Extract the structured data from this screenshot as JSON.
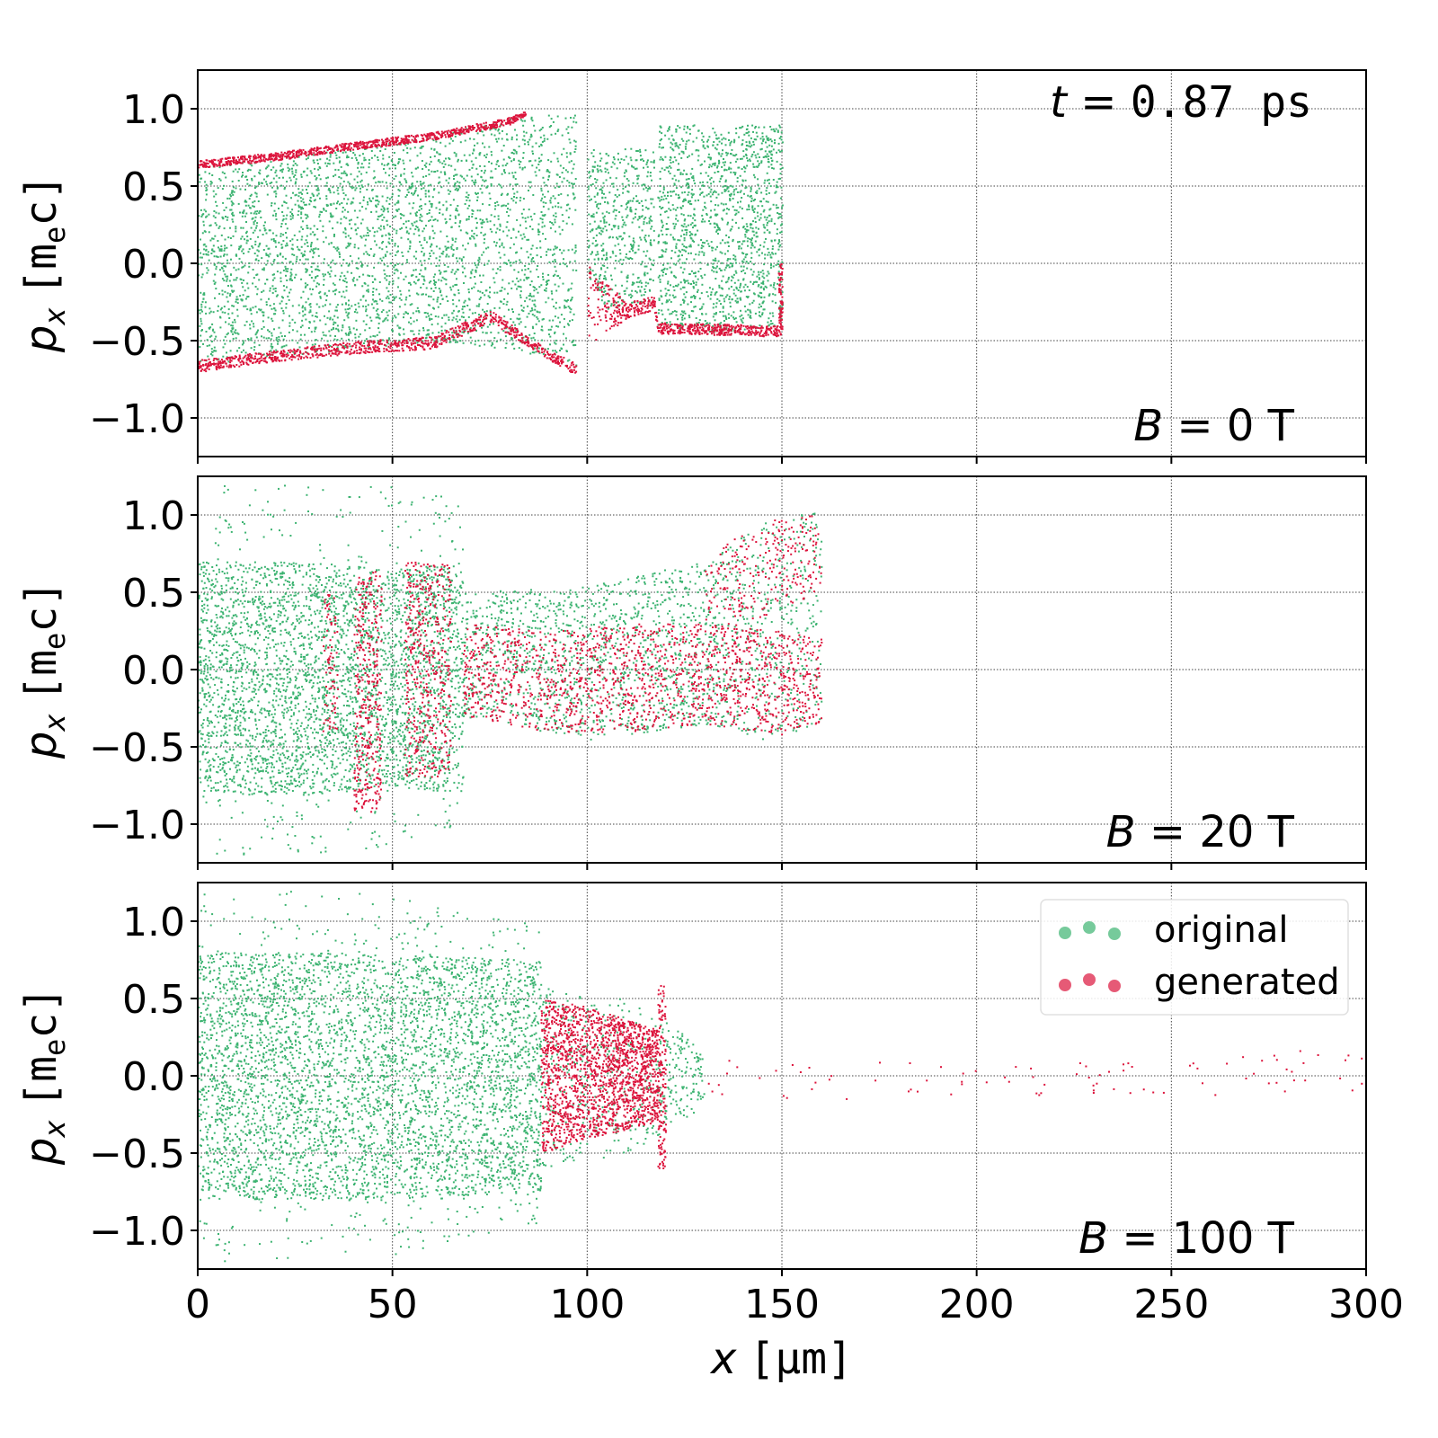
{
  "chart_data": {
    "type": "scatter",
    "colors": {
      "original": "#3cb371",
      "generated": "#dc143c",
      "grid": "#444444"
    },
    "grid": true,
    "legend": {
      "placement": "top-right",
      "panel": 2,
      "entries": [
        {
          "label": "original",
          "color": "#3cb371"
        },
        {
          "label": "generated",
          "color": "#dc143c"
        }
      ]
    },
    "xlabel": {
      "var": "x",
      "unit": "[μm]"
    },
    "ylabel": {
      "var": "p",
      "sub": "x",
      "unit_open": "[m",
      "unit_sub": "e",
      "unit_close": "c]"
    },
    "xlim": [
      0,
      300
    ],
    "ylim": [
      -1.25,
      1.25
    ],
    "xticks": [
      "0",
      "50",
      "100",
      "150",
      "200",
      "250",
      "300"
    ],
    "xtick_values": [
      0,
      50,
      100,
      150,
      200,
      250,
      300
    ],
    "yticks": [
      "−1.0",
      "−0.5",
      "0.0",
      "0.5",
      "1.0"
    ],
    "ytick_values": [
      -1.0,
      -0.5,
      0.0,
      0.5,
      1.0
    ],
    "time_annotation": {
      "var": "t",
      "eq": " = ",
      "value": "0.87 ps"
    },
    "panels": [
      {
        "annotation": {
          "var": "B",
          "eq": " = ",
          "value": "0 T"
        },
        "original": [
          {
            "x": [
              0,
              20,
              40,
              60,
              80,
              97
            ],
            "lo": [
              -0.65,
              -0.6,
              -0.55,
              -0.5,
              -0.55,
              -0.66
            ],
            "hi": [
              0.63,
              0.68,
              0.75,
              0.82,
              0.95,
              0.97
            ],
            "n": 3200
          },
          {
            "x": [
              100,
              105,
              110,
              117
            ],
            "lo": [
              -0.1,
              -0.3,
              -0.25,
              -0.28
            ],
            "hi": [
              0.75,
              0.72,
              0.75,
              0.78
            ],
            "n": 500
          },
          {
            "x": [
              118,
              130,
              150
            ],
            "lo": [
              -0.4,
              -0.45,
              -0.4
            ],
            "hi": [
              0.9,
              0.9,
              0.9
            ],
            "n": 1400
          }
        ],
        "generated": [
          {
            "x": [
              0,
              20,
              40,
              60,
              80,
              84
            ],
            "lo": [
              0.62,
              0.67,
              0.74,
              0.8,
              0.9,
              0.96
            ],
            "hi": [
              0.67,
              0.72,
              0.79,
              0.85,
              0.95,
              0.99
            ],
            "n": 900
          },
          {
            "x": [
              0,
              20,
              40,
              60,
              75,
              90,
              97
            ],
            "lo": [
              -0.7,
              -0.63,
              -0.58,
              -0.55,
              -0.38,
              -0.62,
              -0.72
            ],
            "hi": [
              -0.62,
              -0.56,
              -0.5,
              -0.47,
              -0.3,
              -0.56,
              -0.64
            ],
            "n": 900
          },
          {
            "x": [
              100,
              110,
              117,
              118,
              150
            ],
            "lo": [
              -0.55,
              -0.35,
              -0.3,
              -0.45,
              -0.47
            ],
            "hi": [
              -0.0,
              -0.25,
              -0.2,
              -0.38,
              -0.4
            ],
            "n": 600
          },
          {
            "x": [
              149,
              150
            ],
            "lo": [
              -0.4,
              -0.4
            ],
            "hi": [
              0.0,
              0.0
            ],
            "n": 60
          }
        ]
      },
      {
        "annotation": {
          "var": "B",
          "eq": " = ",
          "value": "20 T"
        },
        "original": [
          {
            "x": [
              0,
              30,
              50,
              68
            ],
            "lo": [
              -0.8,
              -0.8,
              -0.75,
              -0.8
            ],
            "hi": [
              0.7,
              0.7,
              0.65,
              0.7
            ],
            "n": 3200
          },
          {
            "x": [
              0,
              30,
              50,
              68
            ],
            "lo": [
              -1.2,
              -1.2,
              -1.15,
              -1.0
            ],
            "hi": [
              1.2,
              1.2,
              1.2,
              1.1
            ],
            "n": 500
          },
          {
            "x": [
              68,
              100,
              130,
              145,
              160
            ],
            "lo": [
              -0.3,
              -0.45,
              -0.35,
              -0.45,
              -0.35
            ],
            "hi": [
              0.5,
              0.55,
              0.7,
              0.95,
              1.05
            ],
            "n": 1800
          }
        ],
        "generated": [
          {
            "x": [
              32,
              36
            ],
            "lo": [
              -0.4,
              -0.4
            ],
            "hi": [
              0.5,
              0.5
            ],
            "n": 80
          },
          {
            "x": [
              40,
              47
            ],
            "lo": [
              -0.95,
              -0.9
            ],
            "hi": [
              0.6,
              0.65
            ],
            "n": 350
          },
          {
            "x": [
              53,
              65
            ],
            "lo": [
              -0.7,
              -0.7
            ],
            "hi": [
              0.7,
              0.7
            ],
            "n": 450
          },
          {
            "x": [
              68,
              90,
              110,
              130,
              150,
              160
            ],
            "lo": [
              -0.3,
              -0.4,
              -0.4,
              -0.35,
              -0.42,
              -0.35
            ],
            "hi": [
              0.3,
              0.25,
              0.3,
              0.3,
              0.25,
              0.2
            ],
            "n": 1500
          },
          {
            "x": [
              130,
              140,
              150,
              160
            ],
            "lo": [
              0.2,
              0.3,
              0.4,
              0.5
            ],
            "hi": [
              0.7,
              0.9,
              1.0,
              1.05
            ],
            "n": 250
          }
        ]
      },
      {
        "annotation": {
          "var": "B",
          "eq": " = ",
          "value": "100 T"
        },
        "original": [
          {
            "x": [
              0,
              40,
              88
            ],
            "lo": [
              -0.8,
              -0.8,
              -0.75
            ],
            "hi": [
              0.8,
              0.8,
              0.75
            ],
            "n": 4000
          },
          {
            "x": [
              0,
              40,
              88
            ],
            "lo": [
              -1.2,
              -1.2,
              -1.0
            ],
            "hi": [
              1.2,
              1.2,
              1.0
            ],
            "n": 700
          },
          {
            "x": [
              88,
              110,
              130
            ],
            "lo": [
              -0.6,
              -0.5,
              -0.2
            ],
            "hi": [
              0.6,
              0.5,
              0.2
            ],
            "n": 500
          }
        ],
        "generated": [
          {
            "x": [
              88,
              100,
              118
            ],
            "lo": [
              -0.5,
              -0.4,
              -0.3
            ],
            "hi": [
              0.5,
              0.45,
              0.3
            ],
            "n": 1800
          },
          {
            "x": [
              118,
              120
            ],
            "lo": [
              -0.6,
              -0.6
            ],
            "hi": [
              0.6,
              0.6
            ],
            "n": 150
          },
          {
            "x": [
              130,
              200,
              300
            ],
            "lo": [
              -0.15,
              -0.15,
              -0.1
            ],
            "hi": [
              0.2,
              0.05,
              0.2
            ],
            "n": 90
          }
        ]
      }
    ]
  }
}
